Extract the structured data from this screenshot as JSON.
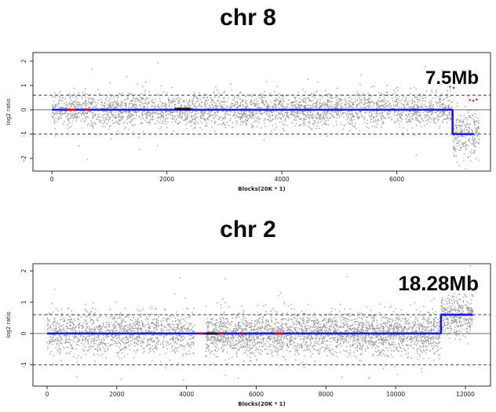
{
  "page": {
    "background": "#ffffff"
  },
  "chart_data": [
    {
      "type": "scatter",
      "title": "chr 8",
      "xlabel": "Blocks(20K * 1)",
      "ylabel": "log2 ratio",
      "xlim": [
        -330,
        7630
      ],
      "ylim": [
        -2.52,
        2.35
      ],
      "xticks": [
        0,
        2000,
        4000,
        6000
      ],
      "yticks": [
        -2,
        -1,
        0,
        1,
        2
      ],
      "threshold_lines": [
        0.6,
        -1
      ],
      "zero_line": 0,
      "grid": false,
      "annotation": {
        "text": "7.5Mb"
      },
      "scatter_color": "#4a4a4a",
      "regions": [
        {
          "x_from": 0,
          "x_to": 6970,
          "mean": 0,
          "sd": 0.33,
          "n": 3200
        },
        {
          "x_from": 6970,
          "x_to": 7430,
          "mean": -1.0,
          "sd": 0.5,
          "n": 260
        }
      ],
      "cbs_segments": [
        {
          "x_from": 0,
          "x_to": 6970,
          "y": 0,
          "color": "#1a1ae6",
          "width": 2.6
        },
        {
          "x_from": 260,
          "x_to": 400,
          "y": 0,
          "color": "#e60000",
          "width": 2.6
        },
        {
          "x_from": 574,
          "x_to": 642,
          "y": 0,
          "color": "#e60000",
          "width": 2.6
        },
        {
          "x_from": 2131,
          "x_to": 2418,
          "y": 0.03,
          "color": "#111111",
          "width": 3
        },
        {
          "x_from": 6970,
          "x_to": 7340,
          "y": -1,
          "color": "#1a1ae6",
          "width": 2.6
        }
      ],
      "step_connectors": [
        {
          "x": 6970,
          "y_from": 0,
          "y_to": -1,
          "color": "#1a1ae6",
          "width": 2.6
        }
      ],
      "red_points": [
        {
          "x": 6925,
          "y": 0.95
        },
        {
          "x": 6990,
          "y": 0.9
        },
        {
          "x": 7270,
          "y": 0.4
        },
        {
          "x": 7330,
          "y": 0.37
        },
        {
          "x": 7390,
          "y": 0.42
        }
      ],
      "segment_annotation_meaning": "terminal deletion of 7.5Mb (375 blocks at log2 ratio -1)"
    },
    {
      "type": "scatter",
      "title": "chr 2",
      "xlabel": "Blocks(20K * 1)",
      "ylabel": "log2 ratio",
      "xlim": [
        -405,
        12720
      ],
      "ylim": [
        -1.68,
        2.23
      ],
      "xticks": [
        0,
        2000,
        4000,
        6000,
        8000,
        10000,
        12000
      ],
      "yticks": [
        -1,
        0,
        1,
        2
      ],
      "threshold_lines": [
        0.6,
        -1
      ],
      "zero_line": 0,
      "grid": false,
      "annotation": {
        "text": "18.28Mb"
      },
      "scatter_color": "#4a4a4a",
      "regions": [
        {
          "x_from": 0,
          "x_to": 4232,
          "mean": 0,
          "sd": 0.33,
          "n": 1300
        },
        {
          "x_from": 4548,
          "x_to": 11300,
          "mean": 0,
          "sd": 0.33,
          "n": 2700
        },
        {
          "x_from": 11300,
          "x_to": 12220,
          "mean": 0.6,
          "sd": 0.3,
          "n": 380
        }
      ],
      "cbs_segments": [
        {
          "x_from": 0,
          "x_to": 11300,
          "y": 0,
          "color": "#1a1ae6",
          "width": 2.6
        },
        {
          "x_from": 4345,
          "x_to": 4458,
          "y": 0,
          "color": "#e60000",
          "width": 2.6
        },
        {
          "x_from": 4548,
          "x_to": 4885,
          "y": 0,
          "color": "#111111",
          "width": 3
        },
        {
          "x_from": 4953,
          "x_to": 5066,
          "y": 0,
          "color": "#e60000",
          "width": 2.6
        },
        {
          "x_from": 5561,
          "x_to": 5629,
          "y": 0,
          "color": "#e60000",
          "width": 2.6
        },
        {
          "x_from": 6529,
          "x_to": 6754,
          "y": 0,
          "color": "#e60000",
          "width": 2.6
        },
        {
          "x_from": 11300,
          "x_to": 12214,
          "y": 0.6,
          "color": "#1a1ae6",
          "width": 2.6
        }
      ],
      "step_connectors": [
        {
          "x": 11300,
          "y_from": 0,
          "y_to": 0.6,
          "color": "#1a1ae6",
          "width": 2.6
        }
      ],
      "red_points": [],
      "segment_annotation_meaning": "terminal gain of 18.28Mb (914 blocks at log2 ratio +0.6)"
    }
  ],
  "colors": {
    "segment_blue": "#1a1ae6",
    "segment_red": "#e60000",
    "segment_black": "#111111",
    "scatter_gray": "#4a4a4a",
    "axis": "#2b2b2b",
    "zero_line_gray": "#8a8a8a"
  }
}
